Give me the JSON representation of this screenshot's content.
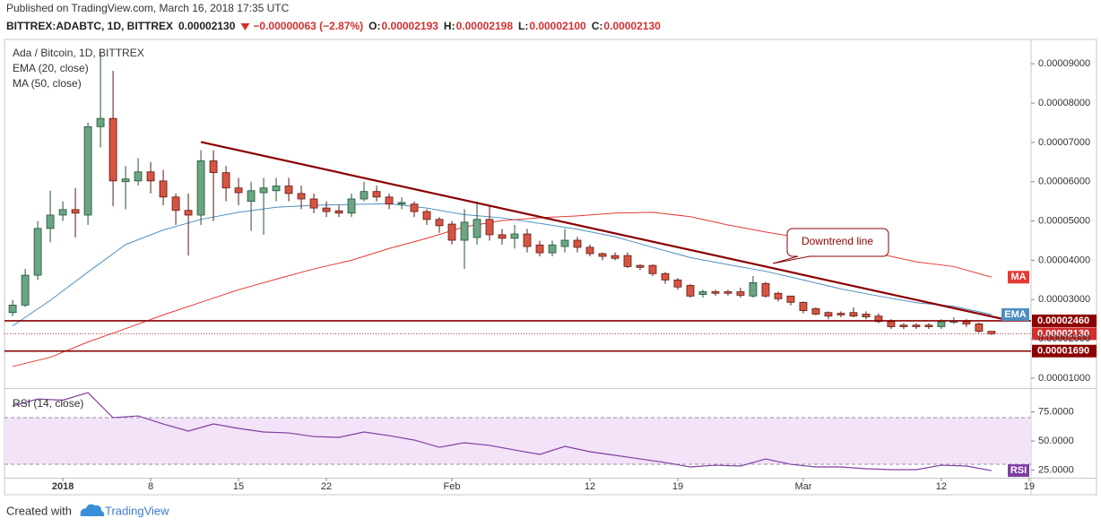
{
  "header": {
    "published": "Published on TradingView.com, March 16, 2018 17:35 UTC",
    "symbol": "BITTREX:ADABTC, 1D, BITTREX",
    "last": "0.00002130",
    "change": "−0.00000063 (−2.87%)",
    "ohlc": [
      {
        "key": "O:",
        "value": "0.00002193"
      },
      {
        "key": "H:",
        "value": "0.00002198"
      },
      {
        "key": "L:",
        "value": "0.00002100"
      },
      {
        "key": "C:",
        "value": "0.00002130"
      }
    ]
  },
  "footer": {
    "created": "Created with",
    "brand": "TradingView"
  },
  "chart_data": [
    {
      "type": "candlestick",
      "title": "Ada / Bitcoin, 1D, BITTREX",
      "up_color": "#6ba583",
      "down_color": "#d75442",
      "up_border": "#225437",
      "down_border": "#5b1a13",
      "x": [
        0,
        1,
        2,
        3,
        4,
        5,
        6,
        7,
        8,
        9,
        10,
        11,
        12,
        13,
        14,
        15,
        16,
        17,
        18,
        19,
        20,
        21,
        22,
        23,
        24,
        25,
        26,
        27,
        28,
        29,
        30,
        31,
        32,
        33,
        34,
        35,
        36,
        37,
        38,
        39,
        40,
        41,
        42,
        43,
        44,
        45,
        46,
        47,
        48,
        49,
        50,
        51,
        52,
        53,
        54,
        55,
        56,
        57,
        58,
        59,
        60,
        61,
        62,
        63,
        64,
        65,
        66,
        67,
        68,
        69,
        70,
        71,
        72,
        73,
        74,
        75,
        76,
        77,
        78
      ],
      "open": [
        2.67e-05,
        2.86e-05,
        3.62e-05,
        4.81e-05,
        5.15e-05,
        5.29e-05,
        5.15e-05,
        7.4e-05,
        7.61e-05,
        6e-05,
        6.02e-05,
        6.25e-05,
        6.02e-05,
        5.61e-05,
        5.27e-05,
        5.15e-05,
        6.53e-05,
        6.23e-05,
        5.84e-05,
        5.5e-05,
        5.72e-05,
        5.77e-05,
        5.89e-05,
        5.7e-05,
        5.56e-05,
        5.33e-05,
        5.26e-05,
        5.2e-05,
        5.56e-05,
        5.75e-05,
        5.61e-05,
        5.43e-05,
        5.43e-05,
        5.24e-05,
        5.04e-05,
        4.92e-05,
        4.51e-05,
        4.58e-05,
        5.04e-05,
        4.65e-05,
        4.56e-05,
        4.67e-05,
        4.39e-05,
        4.19e-05,
        4.35e-05,
        4.51e-05,
        4.33e-05,
        4.17e-05,
        4.12e-05,
        4.12e-05,
        3.87e-05,
        3.87e-05,
        3.66e-05,
        3.5e-05,
        3.36e-05,
        3.13e-05,
        3.2e-05,
        3.2e-05,
        3.2e-05,
        3.09e-05,
        3.41e-05,
        3.16e-05,
        3.09e-05,
        2.93e-05,
        2.77e-05,
        2.67e-05,
        2.65e-05,
        2.67e-05,
        2.63e-05,
        2.58e-05,
        2.44e-05,
        2.35e-05,
        2.35e-05,
        2.35e-05,
        2.31e-05,
        2.42e-05,
        2.44e-05,
        2.38e-05,
        2.193e-05
      ],
      "high": [
        2.99e-05,
        3.78e-05,
        5e-05,
        5.77e-05,
        5.5e-05,
        5.84e-05,
        7.5e-05,
        9.28e-05,
        8.82e-05,
        6.4e-05,
        6.6e-05,
        6.5e-05,
        6.3e-05,
        5.7e-05,
        5.7e-05,
        6.8e-05,
        6.8e-05,
        6.4e-05,
        6.1e-05,
        6e-05,
        6.1e-05,
        6.1e-05,
        6.1e-05,
        5.9e-05,
        5.7e-05,
        5.5e-05,
        5.4e-05,
        5.7e-05,
        6e-05,
        5.9e-05,
        5.7e-05,
        5.6e-05,
        5.5e-05,
        5.3e-05,
        5.1e-05,
        5e-05,
        5.3e-05,
        5.5e-05,
        5.4e-05,
        4.8e-05,
        4.9e-05,
        4.8e-05,
        4.5e-05,
        4.5e-05,
        4.8e-05,
        4.6e-05,
        4.4e-05,
        4.2e-05,
        4.2e-05,
        4.2e-05,
        3.9e-05,
        3.9e-05,
        3.7e-05,
        3.55e-05,
        3.4e-05,
        3.25e-05,
        3.25e-05,
        3.25e-05,
        3.3e-05,
        3.6e-05,
        3.45e-05,
        3.2e-05,
        3.1e-05,
        2.95e-05,
        2.8e-05,
        2.7e-05,
        2.7e-05,
        2.8e-05,
        2.7e-05,
        2.65e-05,
        2.5e-05,
        2.4e-05,
        2.4e-05,
        2.4e-05,
        2.5e-05,
        2.55e-05,
        2.5e-05,
        2.42e-05,
        2.198e-05
      ],
      "low": [
        2.58e-05,
        2.81e-05,
        3.5e-05,
        4.46e-05,
        5e-05,
        4.58e-05,
        4.9e-05,
        6.87e-05,
        5.38e-05,
        5.3e-05,
        5.9e-05,
        5.7e-05,
        5.4e-05,
        4.9e-05,
        4.12e-05,
        4.9e-05,
        5e-05,
        5.5e-05,
        5.4e-05,
        4.75e-05,
        4.65e-05,
        5.5e-05,
        5.5e-05,
        5.3e-05,
        5.2e-05,
        5.1e-05,
        5.1e-05,
        5.1e-05,
        5.5e-05,
        5.5e-05,
        5.3e-05,
        5.3e-05,
        5.1e-05,
        4.9e-05,
        4.7e-05,
        4.4e-05,
        3.78e-05,
        4.4e-05,
        4.5e-05,
        4.4e-05,
        4.3e-05,
        4.2e-05,
        4.1e-05,
        4.1e-05,
        4.2e-05,
        4.2e-05,
        4.1e-05,
        4e-05,
        4e-05,
        3.8e-05,
        3.75e-05,
        3.6e-05,
        3.4e-05,
        3.25e-05,
        3.05e-05,
        3.05e-05,
        3.1e-05,
        3.1e-05,
        3.05e-05,
        3.05e-05,
        3.05e-05,
        2.95e-05,
        2.85e-05,
        2.65e-05,
        2.6e-05,
        2.5e-05,
        2.55e-05,
        2.55e-05,
        2.5e-05,
        2.4e-05,
        2.25e-05,
        2.25e-05,
        2.25e-05,
        2.25e-05,
        2.25e-05,
        2.38e-05,
        2.3e-05,
        2.15e-05,
        2.1e-05
      ],
      "close": [
        2.86e-05,
        3.62e-05,
        4.81e-05,
        5.15e-05,
        5.29e-05,
        5.2e-05,
        7.4e-05,
        7.61e-05,
        6.02e-05,
        6.07e-05,
        6.25e-05,
        6.02e-05,
        5.61e-05,
        5.27e-05,
        5.15e-05,
        6.53e-05,
        6.23e-05,
        5.84e-05,
        5.72e-05,
        5.77e-05,
        5.84e-05,
        5.89e-05,
        5.7e-05,
        5.56e-05,
        5.33e-05,
        5.24e-05,
        5.2e-05,
        5.56e-05,
        5.75e-05,
        5.61e-05,
        5.43e-05,
        5.47e-05,
        5.24e-05,
        5.04e-05,
        4.88e-05,
        4.51e-05,
        4.97e-05,
        5.04e-05,
        4.65e-05,
        4.56e-05,
        4.67e-05,
        4.35e-05,
        4.19e-05,
        4.39e-05,
        4.51e-05,
        4.33e-05,
        4.17e-05,
        4.1e-05,
        4.05e-05,
        3.84e-05,
        3.82e-05,
        3.66e-05,
        3.5e-05,
        3.32e-05,
        3.09e-05,
        3.2e-05,
        3.16e-05,
        3.16e-05,
        3.11e-05,
        3.43e-05,
        3.09e-05,
        3.02e-05,
        2.93e-05,
        2.72e-05,
        2.63e-05,
        2.58e-05,
        2.61e-05,
        2.58e-05,
        2.56e-05,
        2.44e-05,
        2.31e-05,
        2.31e-05,
        2.31e-05,
        2.31e-05,
        2.44e-05,
        2.46e-05,
        2.38e-05,
        2.193e-05,
        2.13e-05
      ],
      "series": [
        {
          "name": "EMA (20, close)",
          "tag": "EMA",
          "color": "#4f8fc0",
          "x": [
            0,
            3,
            6,
            9,
            12,
            15,
            18,
            21,
            24,
            27,
            30,
            33,
            36,
            39,
            42,
            45,
            48,
            51,
            54,
            57,
            60,
            63,
            66,
            69,
            72,
            75,
            78
          ],
          "values": [
            2.33e-05,
            2.98e-05,
            3.7e-05,
            4.4e-05,
            4.77e-05,
            5.04e-05,
            5.22e-05,
            5.35e-05,
            5.4e-05,
            5.42e-05,
            5.44e-05,
            5.33e-05,
            5.16e-05,
            5.08e-05,
            4.94e-05,
            4.79e-05,
            4.6e-05,
            4.33e-05,
            4.07e-05,
            3.89e-05,
            3.72e-05,
            3.5e-05,
            3.27e-05,
            3.09e-05,
            2.92e-05,
            2.83e-05,
            2.62e-05
          ]
        },
        {
          "name": "MA (50, close)",
          "tag": "MA",
          "color": "#e53935",
          "x": [
            0,
            3,
            6,
            9,
            12,
            15,
            18,
            21,
            24,
            27,
            30,
            33,
            36,
            39,
            42,
            45,
            48,
            51,
            54,
            57,
            60,
            63,
            66,
            69,
            72,
            75,
            78
          ],
          "values": [
            1.3e-05,
            1.53e-05,
            1.92e-05,
            2.26e-05,
            2.61e-05,
            2.93e-05,
            3.25e-05,
            3.52e-05,
            3.78e-05,
            4e-05,
            4.3e-05,
            4.56e-05,
            4.85e-05,
            5.01e-05,
            5.08e-05,
            5.13e-05,
            5.2e-05,
            5.22e-05,
            5.11e-05,
            4.9e-05,
            4.72e-05,
            4.56e-05,
            4.33e-05,
            4.17e-05,
            3.96e-05,
            3.84e-05,
            3.57e-05
          ]
        }
      ],
      "trendline": {
        "x": [
          15,
          78.86
        ],
        "values": [
          7.01e-05,
          2.51e-05
        ],
        "color": "#8b0000"
      },
      "annotation": "Downtrend line",
      "levels": [
        {
          "value": 2.46e-05,
          "label": "0.00002460",
          "color": "#8b0000",
          "style": "solid"
        },
        {
          "value": 2.13e-05,
          "label": "0.00002130",
          "color": "#d32f2f",
          "style": "dotted"
        },
        {
          "value": 1.69e-05,
          "label": "0.00001690",
          "color": "#8b0000",
          "style": "solid"
        }
      ],
      "xlim": [
        -0.65,
        81.15
      ],
      "xticks": [
        {
          "value": 4,
          "label": "2018"
        },
        {
          "value": 11,
          "label": "8"
        },
        {
          "value": 18,
          "label": "15"
        },
        {
          "value": 25,
          "label": "22"
        },
        {
          "value": 35,
          "label": "Feb"
        },
        {
          "value": 46,
          "label": "12"
        },
        {
          "value": 53,
          "label": "19"
        },
        {
          "value": 63,
          "label": "Mar"
        },
        {
          "value": 74,
          "label": "12"
        },
        {
          "value": 81,
          "label": "19"
        }
      ],
      "ylim": [
        7.48e-06,
        9.62e-05
      ],
      "yticks": [
        {
          "value": 1e-05,
          "label": "0.00001000"
        },
        {
          "value": 2e-05,
          "label": "0.00002000"
        },
        {
          "value": 3e-05,
          "label": "0.00003000"
        },
        {
          "value": 4e-05,
          "label": "0.00004000"
        },
        {
          "value": 5e-05,
          "label": "0.00005000"
        },
        {
          "value": 6e-05,
          "label": "0.00006000"
        },
        {
          "value": 7e-05,
          "label": "0.00007000"
        },
        {
          "value": 8e-05,
          "label": "0.00008000"
        },
        {
          "value": 9e-05,
          "label": "0.00009000"
        }
      ]
    },
    {
      "type": "line",
      "title": "RSI (14, close)",
      "series": [
        {
          "name": "RSI",
          "color": "#7e3fa0",
          "x": [
            0,
            2,
            4,
            6,
            8,
            10,
            12,
            14,
            16,
            18,
            20,
            22,
            24,
            26,
            28,
            30,
            32,
            34,
            36,
            38,
            40,
            42,
            44,
            46,
            48,
            50,
            52,
            54,
            56,
            58,
            60,
            62,
            64,
            66,
            68,
            70,
            72,
            74,
            76,
            78
          ],
          "values": [
            80,
            86,
            85,
            91.5,
            70,
            71.5,
            64.6,
            58.5,
            64.6,
            60.8,
            57.7,
            56.9,
            53.8,
            53.1,
            57.7,
            54.6,
            50.8,
            44.6,
            48.5,
            46.2,
            42.3,
            38.5,
            45.4,
            40.8,
            37.7,
            34.6,
            31.5,
            27.7,
            29.2,
            28.5,
            34.6,
            30,
            27.7,
            27.7,
            26.2,
            25.4,
            25.4,
            29.2,
            28.5,
            24.6
          ]
        }
      ],
      "band": [
        30,
        70
      ],
      "band_color": "#f3e3f8",
      "ylim": [
        18.5,
        94.6
      ],
      "yticks": [
        {
          "value": 25,
          "label": "25.0000"
        },
        {
          "value": 50,
          "label": "50.0000"
        },
        {
          "value": 75,
          "label": "75.0000"
        }
      ]
    }
  ]
}
